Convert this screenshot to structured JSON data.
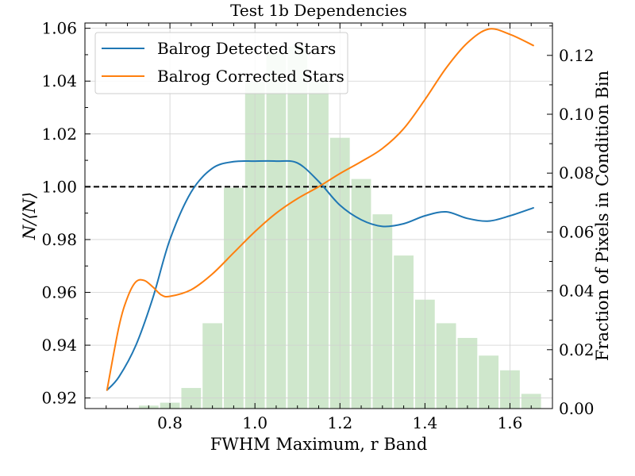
{
  "chart_data": {
    "type": "line",
    "title": "Test 1b Dependencies",
    "xlabel": "FWHM Maximum, r Band",
    "ylabel": "N/⟨N⟩",
    "y2label": "Fraction of Pixels in Condition Bin",
    "xlim": [
      0.6,
      1.7
    ],
    "ylim": [
      0.916,
      1.062
    ],
    "y2lim": [
      0.0,
      0.131
    ],
    "grid": true,
    "legend_position": "top-left",
    "reference_line": {
      "y": 1.0,
      "style": "dashed",
      "color": "#000000"
    },
    "x_ticks": [
      "0.8",
      "1.0",
      "1.2",
      "1.4",
      "1.6"
    ],
    "y_ticks": [
      "0.92",
      "0.94",
      "0.96",
      "0.98",
      "1.00",
      "1.02",
      "1.04",
      "1.06"
    ],
    "y2_ticks": [
      "0.00",
      "0.02",
      "0.04",
      "0.06",
      "0.08",
      "0.10",
      "0.12"
    ],
    "histogram": {
      "color": "#cfe7cc",
      "bin_centers": [
        0.75,
        0.8,
        0.85,
        0.9,
        0.95,
        1.0,
        1.05,
        1.1,
        1.15,
        1.2,
        1.25,
        1.3,
        1.35,
        1.4,
        1.45,
        1.5,
        1.55,
        1.6,
        1.65
      ],
      "bin_width": 0.05,
      "values": [
        0.001,
        0.002,
        0.007,
        0.029,
        0.075,
        0.111,
        0.121,
        0.123,
        0.111,
        0.092,
        0.078,
        0.066,
        0.052,
        0.037,
        0.029,
        0.024,
        0.018,
        0.013,
        0.005
      ]
    },
    "series": [
      {
        "name": "Balrog Detected Stars",
        "color": "#1f77b4",
        "x": [
          0.652,
          0.68,
          0.72,
          0.76,
          0.8,
          0.85,
          0.9,
          0.95,
          1.0,
          1.05,
          1.1,
          1.15,
          1.2,
          1.25,
          1.3,
          1.35,
          1.4,
          1.45,
          1.5,
          1.55,
          1.6,
          1.655
        ],
        "values": [
          0.923,
          0.928,
          0.94,
          0.958,
          0.98,
          0.998,
          1.007,
          1.0095,
          1.0097,
          1.0097,
          1.009,
          1.002,
          0.993,
          0.9875,
          0.985,
          0.986,
          0.989,
          0.9905,
          0.988,
          0.987,
          0.989,
          0.992
        ]
      },
      {
        "name": "Balrog Corrected Stars",
        "color": "#ff7f0e",
        "x": [
          0.652,
          0.68,
          0.7,
          0.72,
          0.74,
          0.76,
          0.78,
          0.8,
          0.85,
          0.9,
          0.95,
          1.0,
          1.05,
          1.1,
          1.15,
          1.2,
          1.25,
          1.3,
          1.35,
          1.4,
          1.45,
          1.5,
          1.55,
          1.6,
          1.655
        ],
        "values": [
          0.923,
          0.947,
          0.958,
          0.964,
          0.9645,
          0.962,
          0.959,
          0.9585,
          0.961,
          0.967,
          0.975,
          0.983,
          0.99,
          0.9955,
          1.0,
          1.005,
          1.0095,
          1.0145,
          1.022,
          1.033,
          1.045,
          1.0545,
          1.0597,
          1.0577,
          1.0535
        ]
      }
    ]
  }
}
